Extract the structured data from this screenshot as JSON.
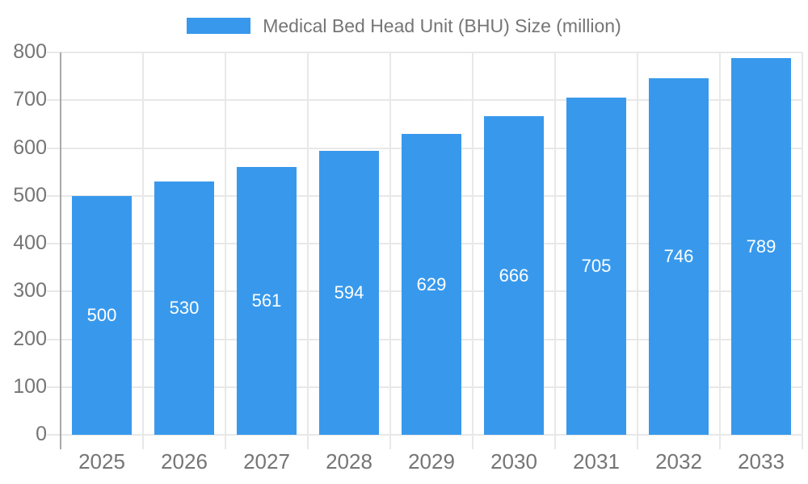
{
  "legend": {
    "label": "Medical Bed Head Unit (BHU) Size (million)"
  },
  "chart_data": {
    "type": "bar",
    "title": "Medical Bed Head Unit (BHU) Size (million)",
    "series_name": "Medical Bed Head Unit (BHU) Size (million)",
    "categories": [
      "2025",
      "2026",
      "2027",
      "2028",
      "2029",
      "2030",
      "2031",
      "2032",
      "2033"
    ],
    "values": [
      500,
      530,
      561,
      594,
      629,
      666,
      705,
      746,
      789
    ],
    "bar_labels": [
      500,
      530,
      561,
      594,
      629,
      666,
      705,
      746,
      789
    ],
    "xlabel": "",
    "ylabel": "",
    "ylim": [
      0,
      800
    ],
    "ytick_step": 100,
    "yticks": [
      0,
      100,
      200,
      300,
      400,
      500,
      600,
      700,
      800
    ],
    "grid": true,
    "legend_position": "top",
    "value_label_position": "center-inside",
    "colors": {
      "bar": "#3899EC",
      "bar_label_text": "#FFFFFF",
      "axis_text": "#757575",
      "axis_line": "#A9A9A9",
      "grid_line": "#E8E8E8",
      "background": "#FFFFFF"
    }
  }
}
